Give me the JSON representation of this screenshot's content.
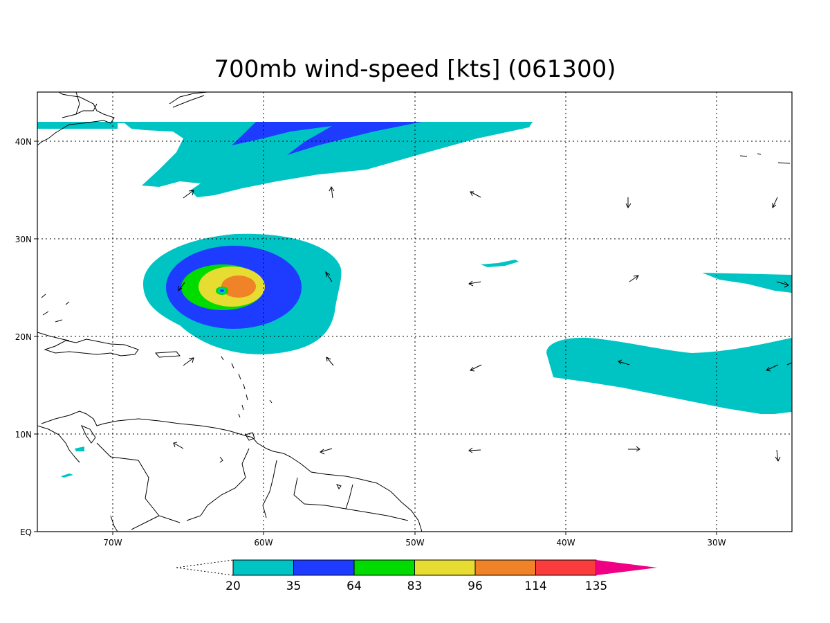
{
  "title": "700mb wind-speed [kts] (061300)",
  "axes": {
    "lon_labels": [
      "70W",
      "60W",
      "50W",
      "40W",
      "30W"
    ],
    "lat_labels": [
      "40N",
      "30N",
      "20N",
      "10N",
      "EQ"
    ],
    "lon_range": [
      -75,
      -25
    ],
    "lat_range": [
      0,
      45
    ],
    "grid": "dotted"
  },
  "colorbar": {
    "levels": [
      "20",
      "35",
      "64",
      "83",
      "96",
      "114",
      "135"
    ],
    "colors": [
      "#00c4c4",
      "#1e3cff",
      "#00dc00",
      "#e6dc32",
      "#f08228",
      "#fa3c3c",
      "#f00082"
    ],
    "below_min_color": "#ffffff"
  },
  "colors": {
    "frame": "#000000",
    "coastline": "#000000",
    "background": "#ffffff"
  }
}
